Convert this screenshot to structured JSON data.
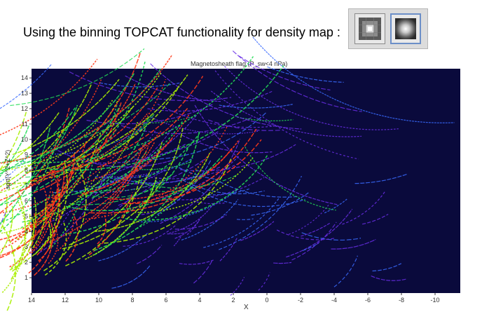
{
  "caption": "Using the binning TOPCAT functionality for density map :",
  "toolbar": {
    "buttons": [
      {
        "icon": "square-bin-icon"
      },
      {
        "icon": "gaussian-blur-icon"
      }
    ]
  },
  "chart_data": {
    "type": "heatmap",
    "title": "Magnetosheath flag (P_sw<4 nPa)",
    "xlabel": "X",
    "ylabel": "sqrt(Y^2+Z^2)",
    "xlim": [
      14,
      -11.5
    ],
    "ylim": [
      0,
      14.6
    ],
    "x_ticks": [
      14,
      12,
      10,
      8,
      6,
      4,
      2,
      0,
      -2,
      -4,
      -6,
      -8,
      -10
    ],
    "x_tick_labels": [
      "14",
      "12",
      "10",
      "8",
      "6",
      "4",
      "2",
      "0",
      "-2",
      "-4",
      "-6",
      "-8",
      "-10"
    ],
    "y_ticks": [
      1,
      2,
      3,
      4,
      5,
      6,
      7,
      8,
      9,
      10,
      11,
      12,
      13,
      14
    ],
    "y_tick_labels": [
      "1",
      "2",
      "3",
      "4",
      "5",
      "6",
      "7",
      "8",
      "9",
      "10",
      "11",
      "12",
      "13",
      "14"
    ],
    "background_color": "#0a0a3c",
    "colormap": [
      "#6a2ee6",
      "#3a6bff",
      "#22dd55",
      "#aaee00",
      "#ff3a1a"
    ],
    "regions": [
      {
        "description": "dense dayside magnetosheath arcs",
        "x_range": [
          7,
          14
        ],
        "y_range": [
          3.5,
          14.5
        ],
        "density": "high"
      },
      {
        "description": "flank arcs",
        "x_range": [
          0,
          7
        ],
        "y_range": [
          6,
          14.5
        ],
        "density": "medium"
      },
      {
        "description": "nightside tail arcs",
        "x_range": [
          -10,
          7
        ],
        "y_range": [
          1,
          9
        ],
        "density": "low"
      }
    ]
  }
}
